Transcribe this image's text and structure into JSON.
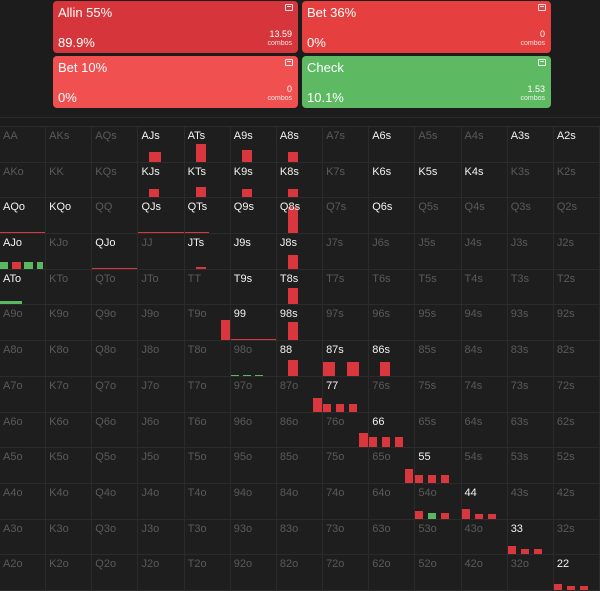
{
  "colors": {
    "allin": "#d9363e",
    "bet36": "#e3413f",
    "bet10": "#f14b4b",
    "check": "#5cb860"
  },
  "actions": [
    {
      "name": "Allin 55%",
      "pct": "89.9%",
      "count": "13.59",
      "unit": "combos",
      "color": "#d6363b"
    },
    {
      "name": "Bet 36%",
      "pct": "0%",
      "count": "0",
      "unit": "combos",
      "color": "#e5403f"
    },
    {
      "name": "Bet 10%",
      "pct": "0%",
      "count": "0",
      "unit": "combos",
      "color": "#f05050"
    },
    {
      "name": "Check",
      "pct": "10.1%",
      "count": "1.53",
      "unit": "combos",
      "color": "#5dba63"
    }
  ],
  "grid": {
    "hands": [
      [
        "AA",
        "AKs",
        "AQs",
        "AJs",
        "ATs",
        "A9s",
        "A8s",
        "A7s",
        "A6s",
        "A5s",
        "A4s",
        "A3s",
        "A2s"
      ],
      [
        "AKo",
        "KK",
        "KQs",
        "KJs",
        "KTs",
        "K9s",
        "K8s",
        "K7s",
        "K6s",
        "K5s",
        "K4s",
        "K3s",
        "K2s"
      ],
      [
        "AQo",
        "KQo",
        "QQ",
        "QJs",
        "QTs",
        "Q9s",
        "Q8s",
        "Q7s",
        "Q6s",
        "Q5s",
        "Q4s",
        "Q3s",
        "Q2s"
      ],
      [
        "AJo",
        "KJo",
        "QJo",
        "JJ",
        "JTs",
        "J9s",
        "J8s",
        "J7s",
        "J6s",
        "J5s",
        "J4s",
        "J3s",
        "J2s"
      ],
      [
        "ATo",
        "KTo",
        "QTo",
        "JTo",
        "TT",
        "T9s",
        "T8s",
        "T7s",
        "T6s",
        "T5s",
        "T4s",
        "T3s",
        "T2s"
      ],
      [
        "A9o",
        "K9o",
        "Q9o",
        "J9o",
        "T9o",
        "99",
        "98s",
        "97s",
        "96s",
        "95s",
        "94s",
        "93s",
        "92s"
      ],
      [
        "A8o",
        "K8o",
        "Q8o",
        "J8o",
        "T8o",
        "98o",
        "88",
        "87s",
        "86s",
        "85s",
        "84s",
        "83s",
        "82s"
      ],
      [
        "A7o",
        "K7o",
        "Q7o",
        "J7o",
        "T7o",
        "97o",
        "87o",
        "77",
        "76s",
        "75s",
        "74s",
        "73s",
        "72s"
      ],
      [
        "A6o",
        "K6o",
        "Q6o",
        "J6o",
        "T6o",
        "96o",
        "86o",
        "76o",
        "66",
        "65s",
        "64s",
        "63s",
        "62s"
      ],
      [
        "A5o",
        "K5o",
        "Q5o",
        "J5o",
        "T5o",
        "95o",
        "85o",
        "75o",
        "65o",
        "55",
        "54s",
        "53s",
        "52s"
      ],
      [
        "A4o",
        "K4o",
        "Q4o",
        "J4o",
        "T4o",
        "94o",
        "84o",
        "74o",
        "64o",
        "54o",
        "44",
        "43s",
        "42s"
      ],
      [
        "A3o",
        "K3o",
        "Q3o",
        "J3o",
        "T3o",
        "93o",
        "83o",
        "73o",
        "63o",
        "53o",
        "43o",
        "33",
        "32s"
      ],
      [
        "A2o",
        "K2o",
        "Q2o",
        "J2o",
        "T2o",
        "92o",
        "82o",
        "72o",
        "62o",
        "52o",
        "42o",
        "32o",
        "22"
      ]
    ],
    "active": [
      "AJs",
      "ATs",
      "A9s",
      "A8s",
      "A6s",
      "A3s",
      "A2s",
      "KJs",
      "KTs",
      "K9s",
      "K8s",
      "K6s",
      "K5s",
      "K4s",
      "AQo",
      "KQo",
      "QJs",
      "QTs",
      "Q9s",
      "Q8s",
      "Q6s",
      "AJo",
      "QJo",
      "JTs",
      "J9s",
      "J8s",
      "ATo",
      "T9s",
      "T8s",
      "99",
      "98s",
      "88",
      "87s",
      "86s",
      "77",
      "66",
      "55",
      "44",
      "33",
      "22"
    ]
  }
}
